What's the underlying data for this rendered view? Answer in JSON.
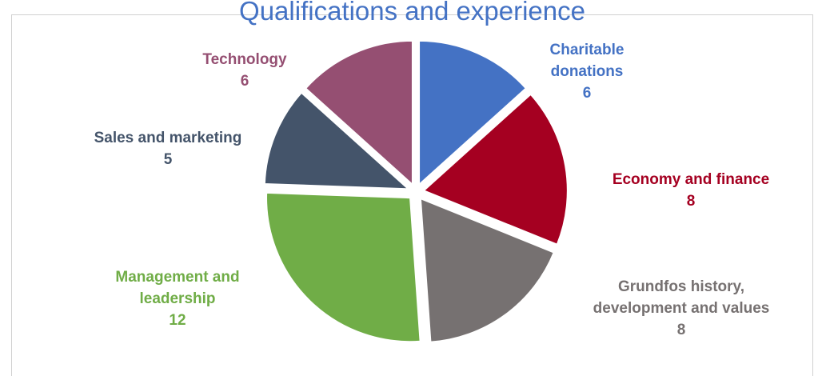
{
  "chart_data": {
    "type": "pie",
    "title": "Qualifications and experience",
    "exploded": true,
    "legend": "none",
    "data_labels": "category name and value, outside slices",
    "slices": [
      {
        "label_lines": [
          "Charitable",
          "donations"
        ],
        "value": 6,
        "color": "#4472c4"
      },
      {
        "label_lines": [
          "Economy and finance"
        ],
        "value": 8,
        "color": "#a50021"
      },
      {
        "label_lines": [
          "Grundfos history,",
          "development and values"
        ],
        "value": 8,
        "color": "#767171"
      },
      {
        "label_lines": [
          "Management and",
          "leadership"
        ],
        "value": 12,
        "color": "#70ad47"
      },
      {
        "label_lines": [
          "Sales and marketing"
        ],
        "value": 5,
        "color": "#44546a"
      },
      {
        "label_lines": [
          "Technology"
        ],
        "value": 6,
        "color": "#954f72"
      }
    ]
  }
}
